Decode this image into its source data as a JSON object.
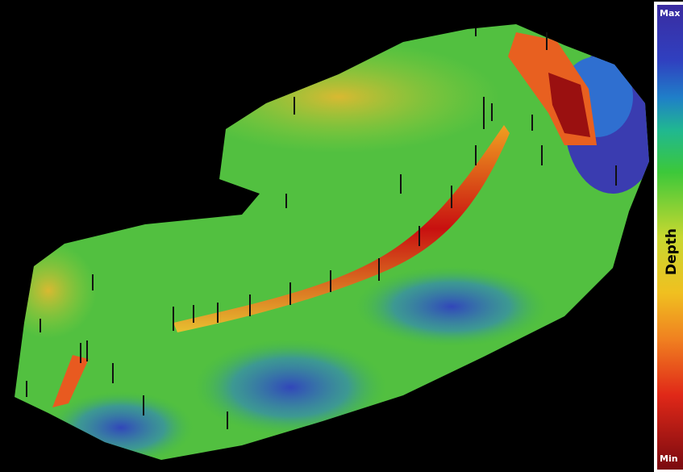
{
  "colorbar": {
    "max_label": "Max",
    "title": "Depth",
    "min_label": "Min"
  }
}
